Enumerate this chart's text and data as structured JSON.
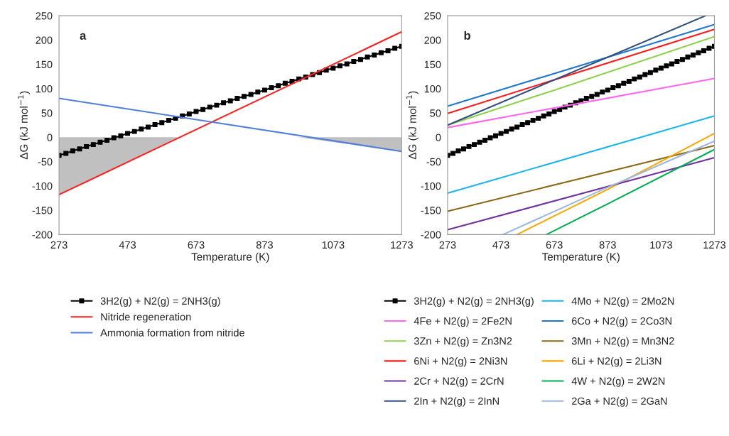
{
  "chart_data": [
    {
      "type": "line",
      "xlabel": "Temperature (K)",
      "ylabel": "ΔG (kJ mol$^{−1}$)",
      "annotations": [
        "a"
      ],
      "xlim": [
        273,
        1273
      ],
      "xticks": [
        273,
        473,
        673,
        873,
        1073,
        1273
      ],
      "ylim": [
        -200,
        250
      ],
      "yticks": [
        -200,
        -150,
        -100,
        -50,
        0,
        50,
        100,
        150,
        200,
        250
      ],
      "grid": false,
      "legend": "bottom",
      "series": [
        {
          "type": "area",
          "color": "#c0c0c0",
          "x": [
            273,
            620,
            970,
            1273
          ],
          "values": [
            -118,
            0,
            0,
            -29
          ]
        },
        {
          "name": "3H2(g) + N2(g) = 2NH3(g)",
          "color": "#000000",
          "marker": "square",
          "x": [
            273,
            293,
            313,
            333,
            353,
            373,
            393,
            413,
            433,
            453,
            473,
            493,
            513,
            533,
            553,
            573,
            593,
            613,
            633,
            653,
            673,
            693,
            713,
            733,
            753,
            773,
            793,
            813,
            833,
            853,
            873,
            893,
            913,
            933,
            953,
            973,
            993,
            1013,
            1033,
            1053,
            1073,
            1093,
            1113,
            1133,
            1153,
            1173,
            1193,
            1213,
            1233,
            1253,
            1273
          ],
          "values": [
            -37,
            -33,
            -28,
            -24,
            -19,
            -15,
            -10,
            -6,
            -1,
            3,
            8,
            12,
            17,
            21,
            26,
            30,
            35,
            39,
            44,
            48,
            53,
            57,
            62,
            66,
            71,
            75,
            80,
            84,
            88,
            93,
            97,
            102,
            106,
            111,
            115,
            120,
            124,
            129,
            133,
            138,
            142,
            147,
            151,
            156,
            160,
            165,
            169,
            174,
            178,
            183,
            187
          ]
        },
        {
          "name": "Nitride regeneration",
          "color": "#ff2020",
          "x": [
            273,
            1273
          ],
          "values": [
            -118,
            217
          ]
        },
        {
          "name": "Ammonia formation from nitride",
          "color": "#4f7fd8",
          "x": [
            273,
            1273
          ],
          "values": [
            80,
            -29
          ]
        }
      ]
    },
    {
      "type": "line",
      "xlabel": "Temperature (K)",
      "ylabel": "ΔG (kJ mol$^{−1}$)",
      "annotations": [
        "b"
      ],
      "xlim": [
        273,
        1273
      ],
      "xticks": [
        273,
        473,
        673,
        873,
        1073,
        1273
      ],
      "ylim": [
        -200,
        250
      ],
      "yticks": [
        -200,
        -150,
        -100,
        -50,
        0,
        50,
        100,
        150,
        200,
        250
      ],
      "grid": false,
      "legend": "bottom",
      "series": [
        {
          "name": "3H2(g) + N2(g) = 2NH3(g)",
          "color": "#000000",
          "marker": "square",
          "x": [
            273,
            293,
            313,
            333,
            353,
            373,
            393,
            413,
            433,
            453,
            473,
            493,
            513,
            533,
            553,
            573,
            593,
            613,
            633,
            653,
            673,
            693,
            713,
            733,
            753,
            773,
            793,
            813,
            833,
            853,
            873,
            893,
            913,
            933,
            953,
            973,
            993,
            1013,
            1033,
            1053,
            1073,
            1093,
            1113,
            1133,
            1153,
            1173,
            1193,
            1213,
            1233,
            1253,
            1273
          ],
          "values": [
            -37,
            -33,
            -28,
            -24,
            -19,
            -15,
            -10,
            -6,
            -1,
            3,
            8,
            12,
            17,
            21,
            26,
            30,
            35,
            39,
            44,
            48,
            53,
            57,
            62,
            66,
            71,
            75,
            80,
            84,
            88,
            93,
            97,
            102,
            106,
            111,
            115,
            120,
            124,
            129,
            133,
            138,
            142,
            147,
            151,
            156,
            160,
            165,
            169,
            174,
            178,
            183,
            187
          ]
        },
        {
          "name": "4Mo + N2(g) = 2Mo2N",
          "color": "#1cb4f0",
          "x": [
            273,
            1273
          ],
          "values": [
            -115,
            44
          ]
        },
        {
          "name": "4Fe + N2(g) = 2Fe2N",
          "color": "#ff66ee",
          "x": [
            273,
            1273
          ],
          "values": [
            20,
            121
          ]
        },
        {
          "name": "6Co + N2(g) = 2Co3N",
          "color": "#1f78d0",
          "x": [
            273,
            1273
          ],
          "values": [
            64,
            232
          ]
        },
        {
          "name": "3Zn + N2(g) = Zn3N2",
          "color": "#8fd14f",
          "x": [
            273,
            673,
            1273
          ],
          "values": [
            25,
            97,
            207
          ]
        },
        {
          "name": "3Mn + N2(g) = Mn3N2",
          "color": "#8b6914",
          "x": [
            273,
            1273
          ],
          "values": [
            -152,
            -17
          ]
        },
        {
          "name": "6Ni + N2(g) = 2Ni3N",
          "color": "#ff1a1a",
          "x": [
            273,
            1273
          ],
          "values": [
            49,
            222
          ]
        },
        {
          "name": "6Li + N2(g) = 2Li3N",
          "color": "#ffa500",
          "x": [
            533,
            873,
            1273
          ],
          "values": [
            -200,
            -107,
            8
          ]
        },
        {
          "name": "2Cr + N2(g) = 2CrN",
          "color": "#7030a0",
          "x": [
            273,
            1273
          ],
          "values": [
            -190,
            -42
          ]
        },
        {
          "name": "4W + N2(g) = 2W2N",
          "color": "#00b050",
          "x": [
            643,
            873,
            1273
          ],
          "values": [
            -200,
            -137,
            -25
          ]
        },
        {
          "name": "2In + N2(g) = 2InN",
          "color": "#2f4f7f",
          "x": [
            273,
            1240
          ],
          "values": [
            25,
            250
          ]
        },
        {
          "name": "2Ga + N2(g) = 2GaN",
          "color": "#9db8e0",
          "x": [
            480,
            873,
            1273
          ],
          "values": [
            -200,
            -103,
            -8
          ]
        }
      ]
    }
  ]
}
